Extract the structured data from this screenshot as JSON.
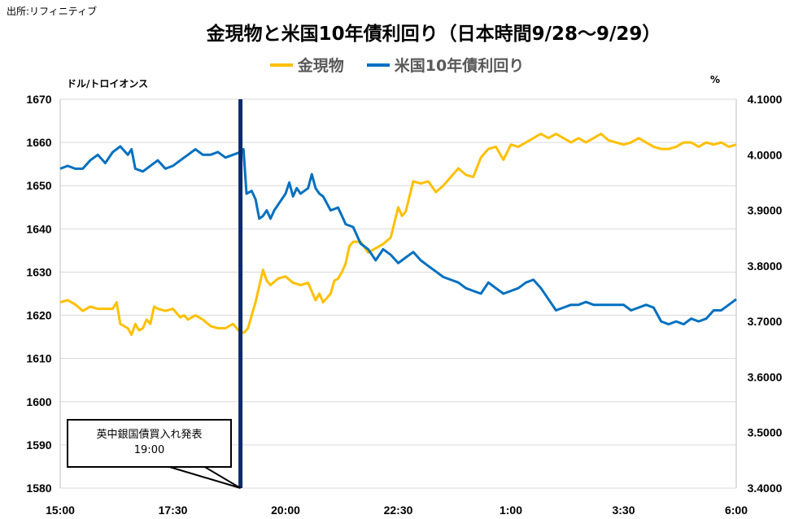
{
  "source": "出所:リフィニティブ",
  "title": "金現物と米国10年債利回り（日本時間9/28～9/29）",
  "left_unit": "ドル/トロイオンス",
  "right_unit": "%",
  "annotation": {
    "line1": "英中銀国債買入れ発表",
    "line2": "19:00"
  },
  "chart_data": {
    "type": "line",
    "x_tick_labels": [
      "15:00",
      "17:30",
      "20:00",
      "22:30",
      "1:00",
      "3:30",
      "6:00"
    ],
    "x_unit": "minutes after 15:00 (9/28)",
    "x_range": [
      0,
      900
    ],
    "y_left": {
      "label": "ドル/トロイオンス",
      "ticks": [
        "1670",
        "1660",
        "1650",
        "1640",
        "1630",
        "1620",
        "1610",
        "1600",
        "1590",
        "1580"
      ],
      "range": [
        1580,
        1670
      ]
    },
    "y_right": {
      "label": "%",
      "ticks": [
        "4.1000",
        "4.0000",
        "3.9000",
        "3.8000",
        "3.7000",
        "3.6000",
        "3.5000",
        "3.4000"
      ],
      "range": [
        3.4,
        4.1
      ]
    },
    "event_line_x": 240,
    "series": [
      {
        "name": "金現物",
        "color": "#FFC000",
        "axis": "left",
        "x": [
          0,
          10,
          20,
          30,
          40,
          50,
          60,
          70,
          75,
          80,
          90,
          95,
          100,
          105,
          110,
          115,
          120,
          125,
          130,
          140,
          150,
          160,
          165,
          170,
          180,
          190,
          200,
          210,
          220,
          230,
          240,
          245,
          250,
          255,
          260,
          270,
          275,
          280,
          290,
          300,
          310,
          320,
          330,
          340,
          345,
          350,
          355,
          360,
          365,
          370,
          375,
          380,
          385,
          390,
          400,
          410,
          420,
          430,
          440,
          450,
          455,
          460,
          470,
          480,
          490,
          500,
          510,
          520,
          530,
          540,
          550,
          560,
          570,
          580,
          590,
          600,
          610,
          620,
          630,
          640,
          650,
          660,
          670,
          680,
          690,
          700,
          710,
          720,
          730,
          740,
          750,
          760,
          770,
          780,
          790,
          800,
          810,
          820,
          830,
          840,
          850,
          860,
          870,
          880,
          890,
          900
        ],
        "y": [
          1623,
          1623.5,
          1622.5,
          1621,
          1622,
          1621.5,
          1621.5,
          1621.5,
          1623,
          1618,
          1617,
          1615.5,
          1618,
          1616.5,
          1617,
          1619,
          1618,
          1622,
          1621.5,
          1621,
          1621.5,
          1619.5,
          1620,
          1619,
          1620,
          1619,
          1617.5,
          1617,
          1617,
          1618,
          1616,
          1616,
          1617,
          1620,
          1623,
          1630.5,
          1628,
          1627,
          1628.5,
          1629,
          1627.5,
          1627,
          1627.5,
          1623.5,
          1625,
          1623,
          1624,
          1625,
          1628,
          1628.5,
          1630,
          1632,
          1636,
          1637,
          1637,
          1634.5,
          1635.5,
          1636.5,
          1638,
          1645,
          1643,
          1644,
          1651,
          1650.5,
          1651,
          1648.5,
          1650,
          1652,
          1654,
          1652.5,
          1652,
          1656.5,
          1658.5,
          1659,
          1656,
          1659.5,
          1659,
          1660,
          1661,
          1662,
          1661,
          1662,
          1661,
          1660,
          1661,
          1660,
          1661,
          1662,
          1660.5,
          1660,
          1659.5,
          1660,
          1661,
          1660,
          1659,
          1658.5,
          1658.5,
          1659,
          1660,
          1660,
          1659,
          1660,
          1659.5,
          1660,
          1659,
          1659.5
        ]
      },
      {
        "name": "米国10年債利回り",
        "color": "#0070C0",
        "axis": "right",
        "x": [
          0,
          10,
          20,
          30,
          40,
          50,
          60,
          70,
          80,
          90,
          95,
          100,
          110,
          120,
          130,
          140,
          150,
          160,
          170,
          180,
          190,
          200,
          210,
          220,
          230,
          240,
          244,
          248,
          255,
          260,
          265,
          270,
          275,
          280,
          285,
          290,
          300,
          305,
          310,
          315,
          320,
          330,
          335,
          340,
          345,
          350,
          360,
          370,
          375,
          380,
          390,
          400,
          410,
          420,
          430,
          440,
          450,
          460,
          470,
          480,
          490,
          500,
          510,
          520,
          530,
          540,
          550,
          560,
          570,
          580,
          590,
          600,
          610,
          620,
          630,
          640,
          650,
          660,
          670,
          680,
          690,
          700,
          710,
          720,
          730,
          740,
          750,
          760,
          770,
          780,
          790,
          800,
          810,
          820,
          830,
          840,
          850,
          860,
          870,
          880,
          890,
          900
        ],
        "y": [
          3.975,
          3.98,
          3.975,
          3.975,
          3.99,
          4.0,
          3.985,
          4.005,
          4.015,
          4.0,
          4.01,
          3.975,
          3.97,
          3.98,
          3.99,
          3.975,
          3.98,
          3.99,
          4.0,
          4.01,
          4.0,
          4.0,
          4.005,
          3.995,
          4.0,
          4.005,
          4.01,
          3.93,
          3.935,
          3.92,
          3.885,
          3.89,
          3.9,
          3.885,
          3.9,
          3.91,
          3.93,
          3.95,
          3.925,
          3.94,
          3.93,
          3.94,
          3.965,
          3.94,
          3.93,
          3.925,
          3.9,
          3.905,
          3.89,
          3.875,
          3.87,
          3.84,
          3.83,
          3.81,
          3.83,
          3.82,
          3.805,
          3.815,
          3.825,
          3.81,
          3.8,
          3.79,
          3.78,
          3.775,
          3.77,
          3.76,
          3.755,
          3.75,
          3.77,
          3.76,
          3.75,
          3.755,
          3.76,
          3.77,
          3.775,
          3.76,
          3.74,
          3.72,
          3.725,
          3.73,
          3.73,
          3.735,
          3.73,
          3.73,
          3.73,
          3.73,
          3.73,
          3.72,
          3.725,
          3.73,
          3.725,
          3.7,
          3.695,
          3.7,
          3.695,
          3.705,
          3.7,
          3.705,
          3.72,
          3.72,
          3.73,
          3.74
        ]
      }
    ]
  }
}
